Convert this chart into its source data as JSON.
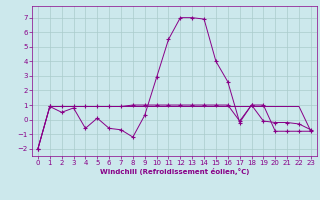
{
  "xlabel": "Windchill (Refroidissement éolien,°C)",
  "bg_color": "#cce8ec",
  "grid_color": "#aacccc",
  "line_color": "#880088",
  "xlim": [
    -0.5,
    23.5
  ],
  "ylim": [
    -2.5,
    7.8
  ],
  "xticks": [
    0,
    1,
    2,
    3,
    4,
    5,
    6,
    7,
    8,
    9,
    10,
    11,
    12,
    13,
    14,
    15,
    16,
    17,
    18,
    19,
    20,
    21,
    22,
    23
  ],
  "yticks": [
    -2,
    -1,
    0,
    1,
    2,
    3,
    4,
    5,
    6,
    7
  ],
  "series1_x": [
    0,
    1,
    2,
    3,
    4,
    5,
    6,
    7,
    8,
    9,
    10,
    11,
    12,
    13,
    14,
    15,
    16,
    17,
    18,
    19,
    20,
    21,
    22,
    23
  ],
  "series1_y": [
    -2.0,
    0.9,
    0.5,
    0.8,
    -0.6,
    0.1,
    -0.6,
    -0.7,
    -1.2,
    0.3,
    2.9,
    5.5,
    7.0,
    7.0,
    6.9,
    4.0,
    2.6,
    -0.2,
    1.0,
    -0.1,
    -0.2,
    -0.2,
    -0.3,
    -0.7
  ],
  "series2_x": [
    0,
    1,
    2,
    3,
    4,
    5,
    6,
    7,
    8,
    9,
    10,
    11,
    12,
    13,
    14,
    15,
    16,
    17,
    18,
    19,
    20,
    21,
    22,
    23
  ],
  "series2_y": [
    -2.0,
    0.9,
    0.9,
    0.9,
    0.9,
    0.9,
    0.9,
    0.9,
    1.0,
    1.0,
    1.0,
    1.0,
    1.0,
    1.0,
    1.0,
    1.0,
    1.0,
    -0.1,
    1.0,
    1.0,
    -0.8,
    -0.8,
    -0.8,
    -0.8
  ],
  "series3_x": [
    0,
    1,
    2,
    3,
    4,
    5,
    6,
    7,
    8,
    9,
    10,
    11,
    12,
    13,
    14,
    15,
    16,
    17,
    18,
    19,
    20,
    21,
    22,
    23
  ],
  "series3_y": [
    -2.0,
    0.9,
    0.9,
    0.9,
    0.9,
    0.9,
    0.9,
    0.9,
    0.9,
    0.9,
    0.9,
    0.9,
    0.9,
    0.9,
    0.9,
    0.9,
    0.9,
    0.9,
    0.9,
    0.9,
    0.9,
    0.9,
    0.9,
    -0.8
  ],
  "tick_fontsize": 5,
  "xlabel_fontsize": 5
}
